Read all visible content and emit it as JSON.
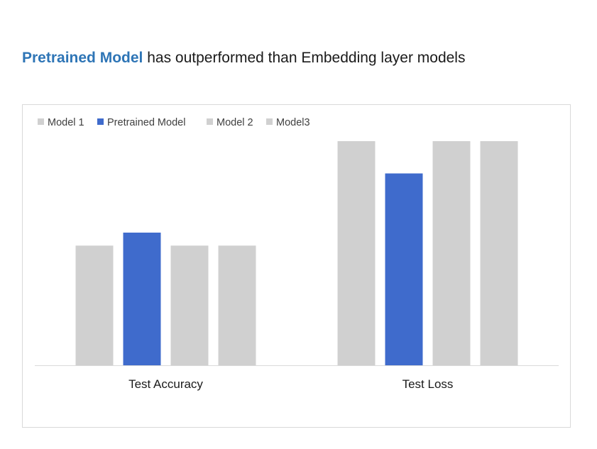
{
  "headline": {
    "highlight": "Pretrained Model",
    "rest": " has outperformed than Embedding layer models"
  },
  "colors": {
    "highlight_text": "#2E75B6",
    "pretrained": "#3F6BCC",
    "other": "#D0D0D0",
    "axis": "#D9D9D9"
  },
  "chart_data": {
    "type": "bar",
    "categories": [
      "Test Accuracy",
      "Test Loss"
    ],
    "series": [
      {
        "name": "Model 1",
        "values": [
          0.534,
          1.0
        ],
        "color": "#D0D0D0"
      },
      {
        "name": "Pretrained Model",
        "values": [
          0.592,
          0.856
        ],
        "color": "#3F6BCC"
      },
      {
        "name": "Model 2",
        "values": [
          0.534,
          1.0
        ],
        "color": "#D0D0D0"
      },
      {
        "name": "Model3",
        "values": [
          0.534,
          1.0
        ],
        "color": "#D0D0D0"
      }
    ],
    "legend_position": "top-left",
    "grid": false,
    "y_axis_visible": false,
    "ylim": [
      0,
      1.0
    ]
  }
}
